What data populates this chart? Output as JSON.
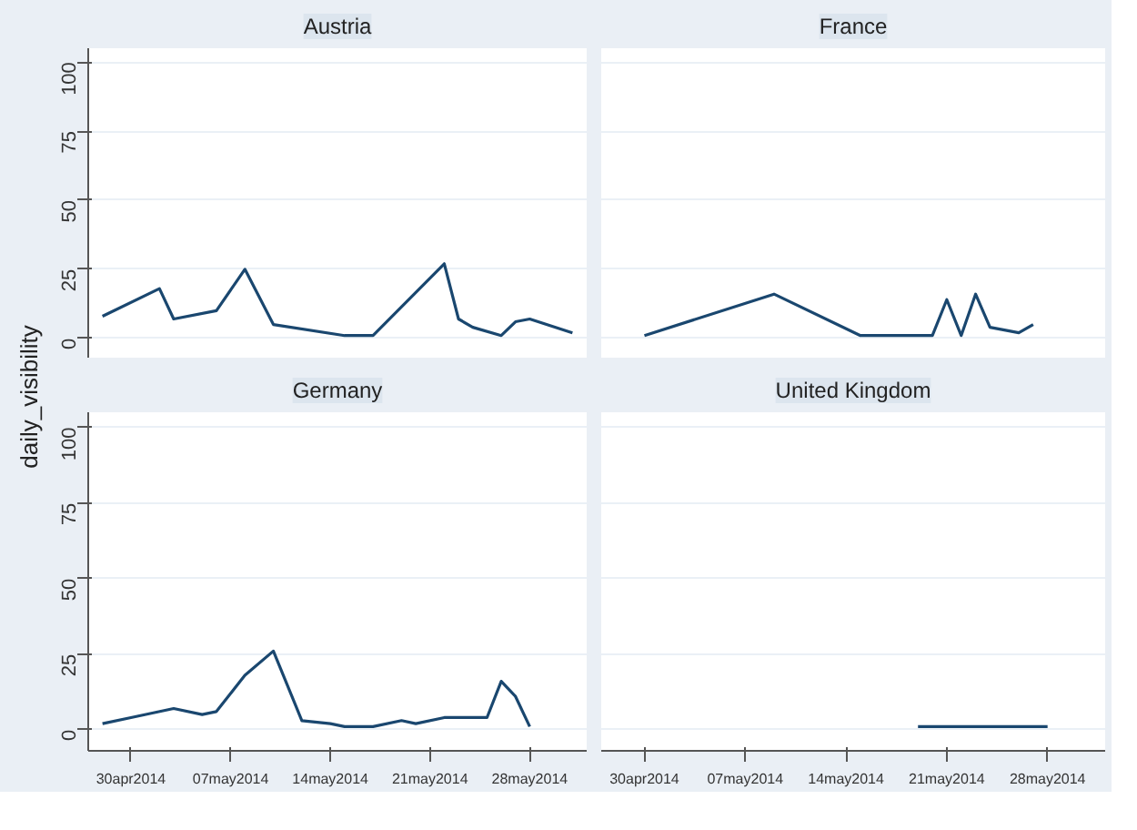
{
  "chart_data": [
    {
      "type": "line",
      "title": "Austria",
      "ylabel": "daily_visibility",
      "xlim": [
        "2014-04-27",
        "2014-06-01"
      ],
      "ylim": [
        -7,
        105
      ],
      "yticks": [
        0,
        25,
        50,
        75,
        100
      ],
      "grid": "y",
      "tick_labels": "y",
      "series": [
        {
          "color": "#1a476f",
          "x": [
            "2014-04-28",
            "2014-05-02",
            "2014-05-03",
            "2014-05-06",
            "2014-05-08",
            "2014-05-10",
            "2014-05-15",
            "2014-05-17",
            "2014-05-22",
            "2014-05-23",
            "2014-05-24",
            "2014-05-26",
            "2014-05-27",
            "2014-05-28",
            "2014-05-31"
          ],
          "values": [
            8,
            18,
            7,
            10,
            25,
            5,
            1,
            1,
            27,
            7,
            4,
            1,
            6,
            7,
            2
          ]
        }
      ]
    },
    {
      "type": "line",
      "title": "France",
      "xlim": [
        "2014-04-27",
        "2014-06-01"
      ],
      "ylim": [
        -7,
        105
      ],
      "yticks": [
        0,
        25,
        50,
        75,
        100
      ],
      "grid": "y",
      "tick_labels": false,
      "series": [
        {
          "color": "#1a476f",
          "x": [
            "2014-04-30",
            "2014-05-09",
            "2014-05-15",
            "2014-05-20",
            "2014-05-21",
            "2014-05-22",
            "2014-05-23",
            "2014-05-24",
            "2014-05-26",
            "2014-05-27"
          ],
          "values": [
            1,
            16,
            1,
            1,
            14,
            1,
            16,
            4,
            2,
            5
          ]
        }
      ]
    },
    {
      "type": "line",
      "title": "Germany",
      "xlim": [
        "2014-04-27",
        "2014-06-01"
      ],
      "ylim": [
        -7,
        105
      ],
      "yticks": [
        0,
        25,
        50,
        75,
        100
      ],
      "xticks": [
        {
          "value": "2014-04-30",
          "label": "30apr2014"
        },
        {
          "value": "2014-05-07",
          "label": "07may2014"
        },
        {
          "value": "2014-05-14",
          "label": "14may2014"
        },
        {
          "value": "2014-05-21",
          "label": "21may2014"
        },
        {
          "value": "2014-05-28",
          "label": "28may2014"
        }
      ],
      "grid": "y",
      "series": [
        {
          "color": "#1a476f",
          "x": [
            "2014-04-28",
            "2014-04-30",
            "2014-05-03",
            "2014-05-05",
            "2014-05-06",
            "2014-05-08",
            "2014-05-10",
            "2014-05-12",
            "2014-05-14",
            "2014-05-15",
            "2014-05-17",
            "2014-05-19",
            "2014-05-20",
            "2014-05-22",
            "2014-05-25",
            "2014-05-26",
            "2014-05-27",
            "2014-05-28"
          ],
          "values": [
            2,
            4,
            7,
            5,
            6,
            18,
            26,
            3,
            2,
            1,
            1,
            3,
            2,
            4,
            4,
            16,
            11,
            1
          ]
        }
      ]
    },
    {
      "type": "line",
      "title": "United Kingdom",
      "xlim": [
        "2014-04-27",
        "2014-06-01"
      ],
      "ylim": [
        -7,
        105
      ],
      "yticks": [
        0,
        25,
        50,
        75,
        100
      ],
      "xticks": [
        {
          "value": "2014-04-30",
          "label": "30apr2014"
        },
        {
          "value": "2014-05-07",
          "label": "07may2014"
        },
        {
          "value": "2014-05-14",
          "label": "14may2014"
        },
        {
          "value": "2014-05-21",
          "label": "21may2014"
        },
        {
          "value": "2014-05-28",
          "label": "28may2014"
        }
      ],
      "grid": "y",
      "tick_labels": "x",
      "series": [
        {
          "color": "#1a476f",
          "x": [
            "2014-05-19",
            "2014-05-28"
          ],
          "values": [
            1,
            1
          ]
        }
      ]
    }
  ]
}
